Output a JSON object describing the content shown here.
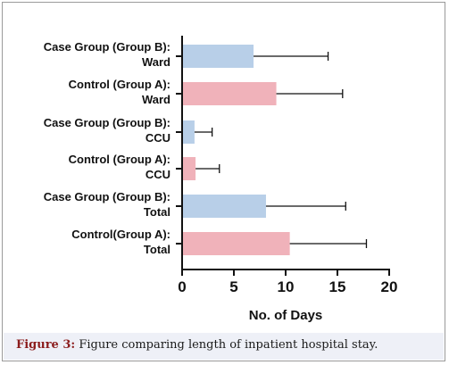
{
  "caption": {
    "label": "Figure 3:",
    "text": " Figure comparing length of inpatient hospital stay."
  },
  "chart_data": {
    "type": "bar",
    "orientation": "horizontal",
    "xlabel": "No. of Days",
    "ylabel": "",
    "xlim": [
      0,
      20
    ],
    "xticks": [
      0,
      5,
      10,
      15,
      20
    ],
    "grid": false,
    "colors": {
      "case": "#b8cfe8",
      "control": "#f0b2ba",
      "axis": "#111111"
    },
    "categories": [
      {
        "line1": "Case Group (Group B):",
        "line2": "Ward",
        "group": "case",
        "value": 6.9,
        "error": 7.2
      },
      {
        "line1": "Control (Group A):",
        "line2": "Ward",
        "group": "control",
        "value": 9.1,
        "error": 6.4
      },
      {
        "line1": "Case Group (Group B):",
        "line2": "CCU",
        "group": "case",
        "value": 1.2,
        "error": 1.7
      },
      {
        "line1": "Control (Group A):",
        "line2": "CCU",
        "group": "control",
        "value": 1.3,
        "error": 2.3
      },
      {
        "line1": "Case Group (Group B):",
        "line2": "Total",
        "group": "case",
        "value": 8.1,
        "error": 7.7
      },
      {
        "line1": "Control(Group A):",
        "line2": "Total",
        "group": "control",
        "value": 10.4,
        "error": 7.4
      }
    ]
  }
}
